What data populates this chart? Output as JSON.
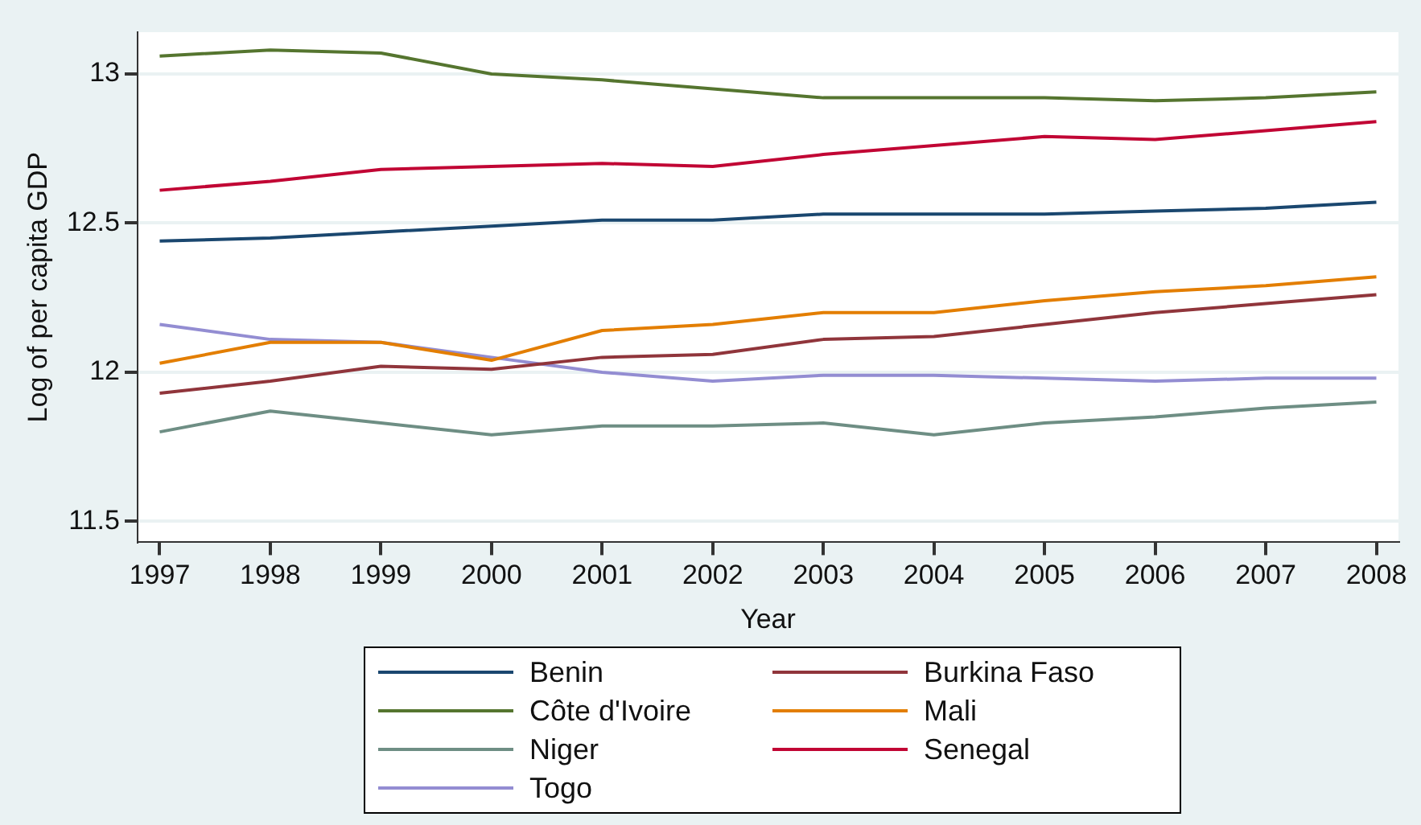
{
  "chart_data": {
    "type": "line",
    "xlabel": "Year",
    "ylabel": "Log of per capita GDP",
    "x": [
      1997,
      1998,
      1999,
      2000,
      2001,
      2002,
      2003,
      2004,
      2005,
      2006,
      2007,
      2008
    ],
    "xlim": [
      1996.8,
      2008.2
    ],
    "xticks": [
      1997,
      1998,
      1999,
      2000,
      2001,
      2002,
      2003,
      2004,
      2005,
      2006,
      2007,
      2008
    ],
    "ylim": [
      11.43,
      13.14
    ],
    "yticks": [
      11.5,
      12,
      12.5,
      13
    ],
    "grid": "y",
    "legend": "bottom",
    "marker": "none",
    "line_style": "solid",
    "series": [
      {
        "name": "Benin",
        "color": "#1a476f",
        "values": [
          12.44,
          12.45,
          12.47,
          12.49,
          12.51,
          12.51,
          12.53,
          12.53,
          12.53,
          12.54,
          12.55,
          12.57
        ]
      },
      {
        "name": "Burkina Faso",
        "color": "#90353b",
        "values": [
          11.93,
          11.97,
          12.02,
          12.01,
          12.05,
          12.06,
          12.11,
          12.12,
          12.16,
          12.2,
          12.23,
          12.26
        ]
      },
      {
        "name": "Côte d'Ivoire",
        "color": "#55752f",
        "values": [
          13.06,
          13.08,
          13.07,
          13.0,
          12.98,
          12.95,
          12.92,
          12.92,
          12.92,
          12.91,
          12.92,
          12.94
        ]
      },
      {
        "name": "Mali",
        "color": "#e37e00",
        "values": [
          12.03,
          12.1,
          12.1,
          12.04,
          12.14,
          12.16,
          12.2,
          12.2,
          12.24,
          12.27,
          12.29,
          12.32
        ]
      },
      {
        "name": "Niger",
        "color": "#6e8e84",
        "values": [
          11.8,
          11.87,
          11.83,
          11.79,
          11.82,
          11.82,
          11.83,
          11.79,
          11.83,
          11.85,
          11.88,
          11.9
        ]
      },
      {
        "name": "Senegal",
        "color": "#c10534",
        "values": [
          12.61,
          12.64,
          12.68,
          12.69,
          12.7,
          12.69,
          12.73,
          12.76,
          12.79,
          12.78,
          12.81,
          12.84
        ]
      },
      {
        "name": "Togo",
        "color": "#938dd2",
        "values": [
          12.16,
          12.11,
          12.1,
          12.05,
          12.0,
          11.97,
          11.99,
          11.99,
          11.98,
          11.97,
          11.98,
          11.98
        ]
      }
    ]
  }
}
